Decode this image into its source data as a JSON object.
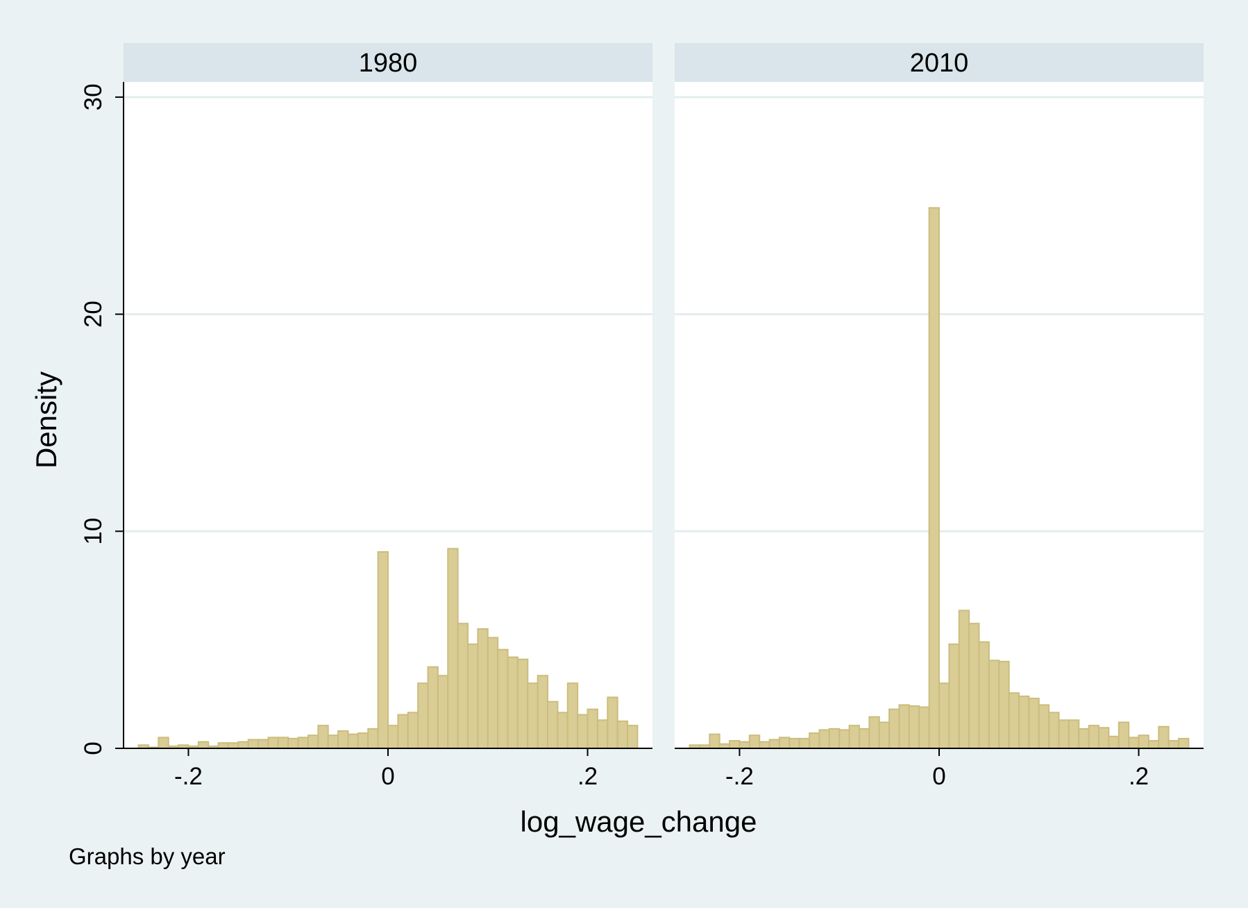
{
  "chart_data": {
    "type": "bar",
    "subtype": "histogram-by-panel",
    "xlabel": "log_wage_change",
    "ylabel": "Density",
    "note": "Graphs by year",
    "xlim": [
      -0.265,
      0.265
    ],
    "ylim": [
      0,
      30.7
    ],
    "xticks": [
      -0.2,
      0,
      0.2
    ],
    "xtick_labels": [
      ".2",
      "0",
      ".2"
    ],
    "xtick_labels_full": [
      "-.2",
      "0",
      ".2"
    ],
    "yticks": [
      0,
      10,
      20,
      30
    ],
    "ytick_labels": [
      "0",
      "10",
      "20",
      "30"
    ],
    "grid": true,
    "bin_start": -0.25,
    "bin_width": 0.01,
    "bar_color": "#d9cc95",
    "bar_edge_color": "#cbbd7e",
    "strip_color": "#d9e5ea",
    "panel_bg": "#ffffff",
    "page_bg": "#eaf2f3",
    "grid_color": "#e3eded",
    "panels": [
      {
        "name": "1980",
        "values": [
          0.15,
          0.05,
          0.5,
          0.1,
          0.15,
          0.1,
          0.3,
          0.1,
          0.25,
          0.25,
          0.3,
          0.4,
          0.4,
          0.5,
          0.5,
          0.45,
          0.5,
          0.6,
          1.05,
          0.6,
          0.8,
          0.65,
          0.7,
          0.9,
          9.05,
          1.05,
          1.55,
          1.65,
          3.0,
          3.75,
          3.35,
          9.2,
          5.75,
          4.8,
          5.5,
          5.1,
          4.55,
          4.2,
          4.1,
          3.0,
          3.35,
          2.15,
          1.65,
          3.0,
          1.55,
          1.8,
          1.3,
          2.35,
          1.25,
          1.05
        ]
      },
      {
        "name": "2010",
        "values": [
          0.15,
          0.15,
          0.65,
          0.2,
          0.35,
          0.3,
          0.6,
          0.3,
          0.4,
          0.5,
          0.45,
          0.45,
          0.7,
          0.85,
          0.9,
          0.85,
          1.05,
          0.9,
          1.45,
          1.2,
          1.8,
          2.0,
          1.95,
          1.9,
          24.9,
          3.0,
          4.8,
          6.35,
          5.75,
          4.9,
          4.05,
          4.0,
          2.55,
          2.4,
          2.3,
          2.0,
          1.65,
          1.3,
          1.3,
          0.9,
          1.05,
          0.95,
          0.55,
          1.2,
          0.5,
          0.6,
          0.35,
          1.0,
          0.35,
          0.45
        ]
      }
    ]
  }
}
